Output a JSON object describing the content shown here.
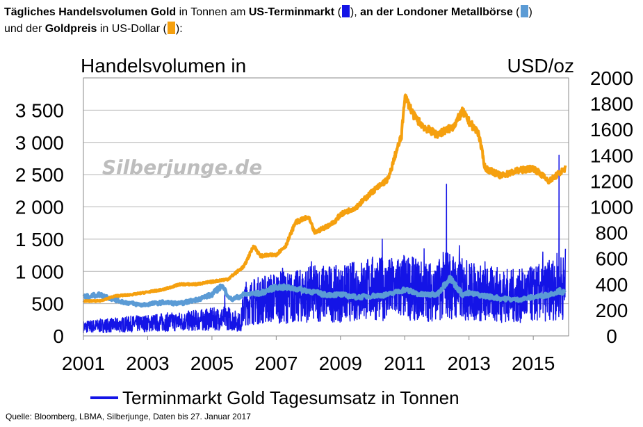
{
  "title": {
    "p1_bold": "Tägliches Handelsvolumen Gold",
    "p2": " in Tonnen am ",
    "p3_bold": "US-Terminmarkt",
    "p4": " (",
    "p5": "), ",
    "p6_bold": "an der Londoner Metallbörse",
    "p7": " (",
    "p8": ")",
    "p9": "und der ",
    "p10_bold": "Goldpreis",
    "p11": " in US-Dollar (",
    "p12": "):"
  },
  "colors": {
    "us_futures": "#1414e6",
    "lbma": "#5b9bd5",
    "gold_price": "#f5a00f",
    "grid": "#b4b4b4"
  },
  "watermark": "Silberjunge.de",
  "source": "Quelle: Bloomberg, LBMA, Silberjunge, Daten bis 27. Januar 2017",
  "chart_data": {
    "type": "line",
    "ylabel_left": "Handelsvolumen in",
    "ylabel_right": "USD/oz",
    "ylim_left": [
      0,
      4000
    ],
    "ylim_right": [
      0,
      2000
    ],
    "xlim": [
      2001,
      2016.1
    ],
    "x_ticks": [
      "2001",
      "2003",
      "2005",
      "2007",
      "2009",
      "2011",
      "2013",
      "2015"
    ],
    "y_ticks_left": [
      "0",
      "500",
      "1 000",
      "1 500",
      "2 000",
      "2 500",
      "3 000",
      "3 500"
    ],
    "y_ticks_right": [
      "0",
      "200",
      "400",
      "600",
      "800",
      "1000",
      "1200",
      "1400",
      "1600",
      "1800",
      "2000"
    ],
    "grid": "horizontal",
    "legend": "bottom-center",
    "series": [
      {
        "name": "Terminmarkt Gold Tagesumsatz in Tonnen",
        "axis": "left",
        "x": [
          2001.0,
          2001.5,
          2002.0,
          2002.5,
          2003.0,
          2003.5,
          2004.0,
          2004.5,
          2005.0,
          2005.5,
          2005.9,
          2006.0,
          2006.5,
          2007.0,
          2007.5,
          2008.0,
          2008.5,
          2009.0,
          2009.5,
          2010.0,
          2010.5,
          2011.0,
          2011.5,
          2012.0,
          2012.3,
          2012.6,
          2013.0,
          2013.5,
          2014.0,
          2014.5,
          2015.0,
          2015.5,
          2015.8,
          2016.0
        ],
        "y": [
          150,
          170,
          180,
          200,
          210,
          230,
          240,
          260,
          280,
          300,
          220,
          550,
          600,
          650,
          640,
          700,
          720,
          700,
          760,
          800,
          780,
          820,
          760,
          740,
          900,
          800,
          760,
          700,
          690,
          660,
          700,
          760,
          850,
          800
        ],
        "spikes": [
          {
            "x": 2005.4,
            "y": 700
          },
          {
            "x": 2007.2,
            "y": 1050
          },
          {
            "x": 2008.1,
            "y": 1150
          },
          {
            "x": 2010.3,
            "y": 1500
          },
          {
            "x": 2011.6,
            "y": 1350
          },
          {
            "x": 2012.3,
            "y": 2350
          },
          {
            "x": 2012.7,
            "y": 1400
          },
          {
            "x": 2013.5,
            "y": 1150
          },
          {
            "x": 2015.3,
            "y": 1300
          },
          {
            "x": 2015.8,
            "y": 2800
          },
          {
            "x": 2016.0,
            "y": 1350
          }
        ]
      },
      {
        "name": "LBMA",
        "axis": "left",
        "x": [
          2001.0,
          2001.5,
          2002.0,
          2002.3,
          2002.8,
          2003.5,
          2004.0,
          2004.5,
          2005.0,
          2005.3,
          2005.6,
          2006.0,
          2006.5,
          2007.0,
          2007.5,
          2008.0,
          2008.5,
          2009.0,
          2009.5,
          2010.0,
          2010.5,
          2011.0,
          2011.5,
          2012.0,
          2012.4,
          2012.8,
          2013.0,
          2013.5,
          2014.0,
          2014.5,
          2015.0,
          2015.5,
          2015.8,
          2016.0
        ],
        "y": [
          600,
          640,
          560,
          520,
          480,
          520,
          500,
          560,
          640,
          780,
          560,
          640,
          660,
          760,
          740,
          700,
          640,
          640,
          600,
          620,
          640,
          720,
          640,
          640,
          900,
          640,
          660,
          620,
          580,
          560,
          600,
          640,
          700,
          660
        ]
      },
      {
        "name": "Goldpreis",
        "axis": "right",
        "x": [
          2001.0,
          2001.5,
          2002.0,
          2002.5,
          2003.0,
          2003.5,
          2004.0,
          2004.5,
          2005.0,
          2005.5,
          2006.0,
          2006.3,
          2006.5,
          2007.0,
          2007.3,
          2007.6,
          2008.0,
          2008.2,
          2008.8,
          2009.0,
          2009.5,
          2010.0,
          2010.5,
          2010.7,
          2010.9,
          2011.0,
          2011.3,
          2011.6,
          2012.0,
          2012.5,
          2012.8,
          2013.0,
          2013.3,
          2013.5,
          2014.0,
          2014.5,
          2015.0,
          2015.5,
          2016.0
        ],
        "y": [
          270,
          270,
          310,
          320,
          340,
          360,
          400,
          400,
          420,
          440,
          540,
          700,
          620,
          630,
          700,
          880,
          920,
          800,
          880,
          940,
          1000,
          1120,
          1220,
          1400,
          1550,
          1860,
          1700,
          1620,
          1560,
          1620,
          1740,
          1660,
          1570,
          1300,
          1240,
          1280,
          1300,
          1200,
          1300
        ]
      }
    ]
  }
}
